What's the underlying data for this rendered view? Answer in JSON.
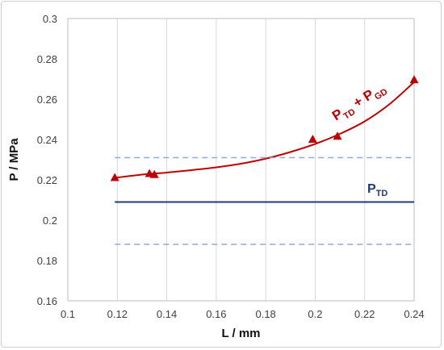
{
  "chart_data": {
    "type": "scatter",
    "xlabel": "L / mm",
    "ylabel": "P / MPa",
    "xlim": [
      0.1,
      0.24
    ],
    "ylim": [
      0.16,
      0.3
    ],
    "x_ticks": [
      "0.1",
      "0.12",
      "0.14",
      "0.16",
      "0.18",
      "0.2",
      "0.22",
      "0.24"
    ],
    "y_ticks": [
      "0.16",
      "0.18",
      "0.2",
      "0.22",
      "0.24",
      "0.26",
      "0.28",
      "0.3"
    ],
    "grid": "vertical",
    "series": [
      {
        "kind": "markers",
        "marker": "triangle",
        "color": "#c00000",
        "points": [
          {
            "x": 0.119,
            "y": 0.221
          },
          {
            "x": 0.133,
            "y": 0.223
          },
          {
            "x": 0.135,
            "y": 0.2225
          },
          {
            "x": 0.199,
            "y": 0.24
          },
          {
            "x": 0.209,
            "y": 0.2415
          },
          {
            "x": 0.24,
            "y": 0.2695
          }
        ]
      },
      {
        "kind": "line",
        "color": "#c00000",
        "x": [
          0.119,
          0.13,
          0.14,
          0.15,
          0.16,
          0.17,
          0.18,
          0.19,
          0.2,
          0.21,
          0.22,
          0.23,
          0.24
        ],
        "y": [
          0.221,
          0.2226,
          0.2236,
          0.2248,
          0.2262,
          0.228,
          0.2305,
          0.2338,
          0.2378,
          0.2428,
          0.249,
          0.2575,
          0.2685
        ]
      },
      {
        "kind": "line",
        "color": "#1f3a7a",
        "x": [
          0.119,
          0.24
        ],
        "y": [
          0.209,
          0.209
        ]
      },
      {
        "kind": "line",
        "dashed": true,
        "color": "#8faadc",
        "x": [
          0.119,
          0.24
        ],
        "y": [
          0.231,
          0.231
        ]
      },
      {
        "kind": "line",
        "dashed": true,
        "color": "#8faadc",
        "x": [
          0.119,
          0.24
        ],
        "y": [
          0.188,
          0.188
        ]
      }
    ],
    "annotations": [
      {
        "main": "P",
        "sub1": "TD",
        "mid": " + P",
        "sub2": "GD",
        "color": "#c00000",
        "rotate": -32
      },
      {
        "main": "P",
        "sub1": "TD",
        "color": "#1f3a7a"
      }
    ]
  }
}
